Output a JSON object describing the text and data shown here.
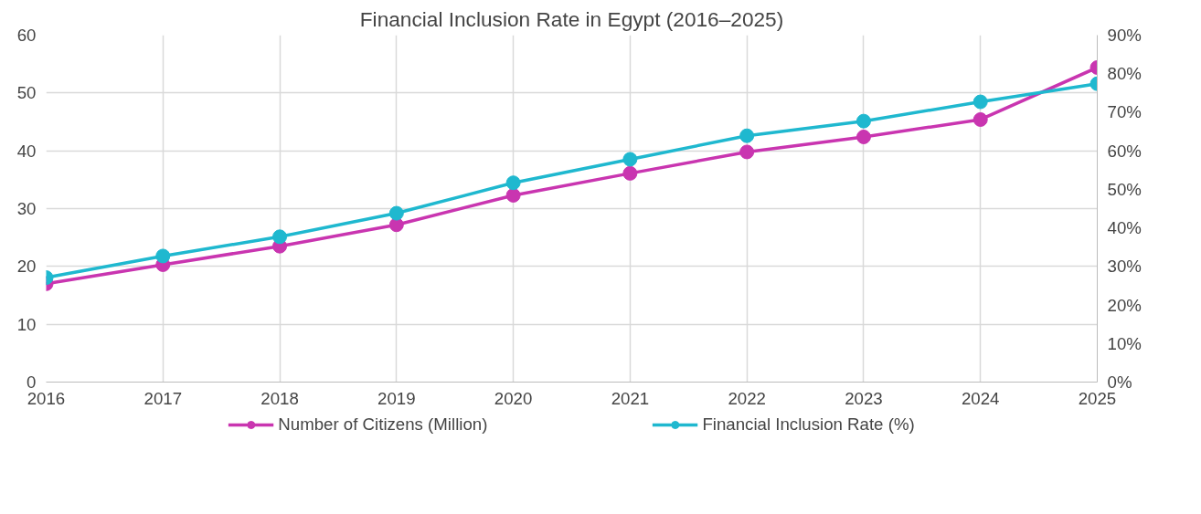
{
  "chart_data": {
    "type": "line",
    "title": "Financial Inclusion Rate in Egypt (2016–2025)",
    "x": [
      2016,
      2017,
      2018,
      2019,
      2020,
      2021,
      2022,
      2023,
      2024,
      2025
    ],
    "xlim": [
      2016,
      2025
    ],
    "xticks": [
      2016,
      2017,
      2018,
      2019,
      2020,
      2021,
      2022,
      2023,
      2024,
      2025
    ],
    "ylim": [
      0,
      60
    ],
    "yticks": [
      0,
      10,
      20,
      30,
      40,
      50,
      60
    ],
    "y2lim": [
      0,
      90
    ],
    "y2ticks": [
      {
        "value": 0,
        "label": "0%"
      },
      {
        "value": 10,
        "label": "10%"
      },
      {
        "value": 20,
        "label": "20%"
      },
      {
        "value": 30,
        "label": "30%"
      },
      {
        "value": 40,
        "label": "40%"
      },
      {
        "value": 50,
        "label": "50%"
      },
      {
        "value": 60,
        "label": "60%"
      },
      {
        "value": 70,
        "label": "70%"
      },
      {
        "value": 80,
        "label": "80%"
      },
      {
        "value": 90,
        "label": "90%"
      }
    ],
    "series": [
      {
        "name": "Number of Citizens (Million)",
        "color": "#c935b0",
        "values": [
          17.0,
          20.3,
          23.5,
          27.2,
          32.3,
          36.1,
          39.8,
          42.4,
          45.4,
          54.4
        ]
      },
      {
        "name": "Financial Inclusion Rate (%)",
        "color": "#1fb8cf",
        "axis": "y2",
        "values": [
          27.1,
          32.7,
          37.7,
          43.8,
          51.7,
          57.8,
          63.9,
          67.7,
          72.7,
          77.4
        ]
      }
    ],
    "grid": true,
    "legend": "bottom",
    "marker": "circle",
    "line_style": "solid"
  }
}
